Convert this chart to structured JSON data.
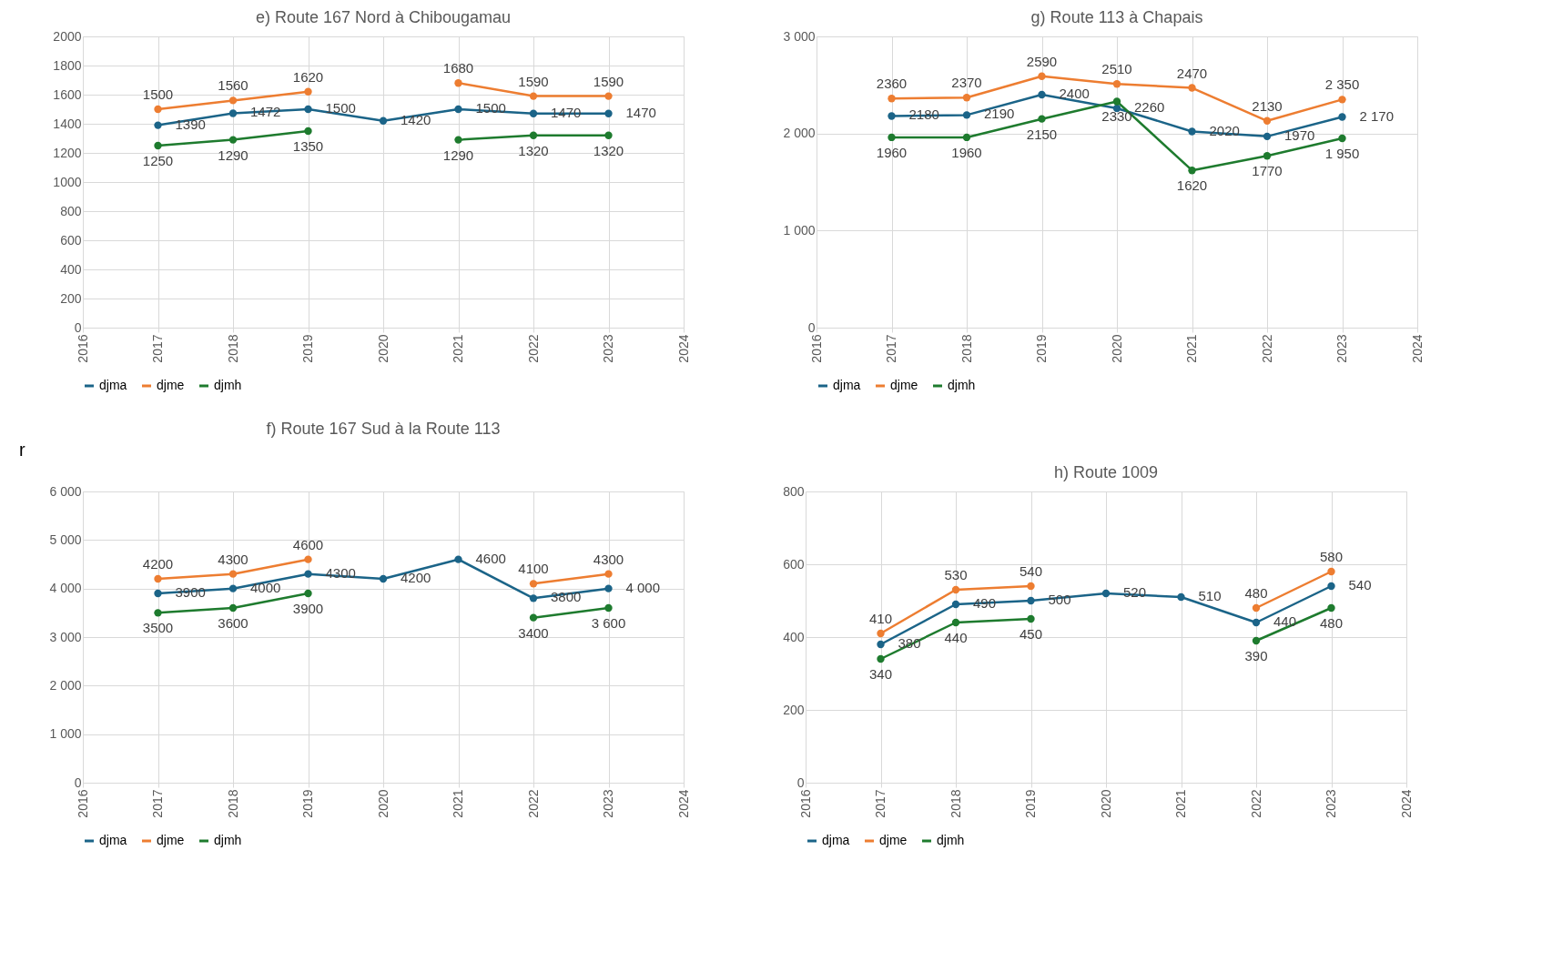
{
  "chart_data": [
    {
      "type": "line",
      "title": "e) Route 167 Nord à Chibougamau",
      "x": [
        2017,
        2018,
        2019,
        2020,
        2021,
        2022,
        2023
      ],
      "xlim": [
        2016,
        2024
      ],
      "xticks": [
        2016,
        2017,
        2018,
        2019,
        2020,
        2021,
        2022,
        2023,
        2024
      ],
      "ylim": [
        0,
        2000
      ],
      "yticks": [
        0,
        200,
        400,
        600,
        800,
        1000,
        1200,
        1400,
        1600,
        1800,
        2000
      ],
      "grid": true,
      "legend": "bottom",
      "marker": "circle",
      "series": [
        {
          "name": "djma",
          "color": "#1b6488",
          "values": [
            1390,
            1472,
            1500,
            1420,
            1500,
            1470,
            1470
          ],
          "value_labels": [
            "1390",
            "1472",
            "1500",
            "1420",
            "1500",
            "1470",
            "1470"
          ]
        },
        {
          "name": "djme",
          "color": "#ed7d31",
          "values": [
            1500,
            1560,
            1620,
            null,
            1680,
            1590,
            1590
          ],
          "value_labels": [
            "1500",
            "1560",
            "1620",
            null,
            "1680",
            "1590",
            "1590"
          ]
        },
        {
          "name": "djmh",
          "color": "#1e7b2e",
          "values": [
            1250,
            1290,
            1350,
            null,
            1290,
            1320,
            1320
          ],
          "value_labels": [
            "1250",
            "1290",
            "1350",
            null,
            "1290",
            "1320",
            "1320"
          ]
        }
      ]
    },
    {
      "type": "line",
      "title": "g) Route 113 à Chapais",
      "x": [
        2017,
        2018,
        2019,
        2020,
        2021,
        2022,
        2023
      ],
      "xlim": [
        2016,
        2024
      ],
      "xticks": [
        2016,
        2017,
        2018,
        2019,
        2020,
        2021,
        2022,
        2023,
        2024
      ],
      "ylim": [
        0,
        3000
      ],
      "yticks": [
        0,
        {
          "value": 1000,
          "label": "1 000"
        },
        {
          "value": 2000,
          "label": "2 000"
        },
        {
          "value": 3000,
          "label": "3 000"
        }
      ],
      "grid": true,
      "legend": "bottom",
      "marker": "circle",
      "series": [
        {
          "name": "djma",
          "color": "#1b6488",
          "values": [
            2180,
            2190,
            2400,
            2260,
            2020,
            1970,
            2170
          ],
          "value_labels": [
            "2180",
            "2190",
            "2400",
            "2260",
            "2020",
            "1970",
            "2 170"
          ]
        },
        {
          "name": "djme",
          "color": "#ed7d31",
          "values": [
            2360,
            2370,
            2590,
            2510,
            2470,
            2130,
            2350
          ],
          "value_labels": [
            "2360",
            "2370",
            "2590",
            "2510",
            "2470",
            "2130",
            "2 350"
          ]
        },
        {
          "name": "djmh",
          "color": "#1e7b2e",
          "values": [
            1960,
            1960,
            2150,
            2330,
            1620,
            1770,
            1950
          ],
          "value_labels": [
            "1960",
            "1960",
            "2150",
            "2330",
            "1620",
            "1770",
            "1 950"
          ]
        }
      ]
    },
    {
      "type": "line",
      "title": "f) Route 167 Sud à la Route 113",
      "annotations": [
        "r"
      ],
      "x": [
        2017,
        2018,
        2019,
        2020,
        2021,
        2022,
        2023
      ],
      "xlim": [
        2016,
        2024
      ],
      "xticks": [
        2016,
        2017,
        2018,
        2019,
        2020,
        2021,
        2022,
        2023,
        2024
      ],
      "ylim": [
        0,
        6000
      ],
      "yticks": [
        0,
        {
          "value": 1000,
          "label": "1 000"
        },
        {
          "value": 2000,
          "label": "2 000"
        },
        {
          "value": 3000,
          "label": "3 000"
        },
        {
          "value": 4000,
          "label": "4 000"
        },
        {
          "value": 5000,
          "label": "5 000"
        },
        {
          "value": 6000,
          "label": "6 000"
        }
      ],
      "grid": true,
      "legend": "bottom",
      "marker": "circle",
      "series": [
        {
          "name": "djma",
          "color": "#1b6488",
          "values": [
            3900,
            4000,
            4300,
            4200,
            4600,
            3800,
            4000
          ],
          "value_labels": [
            "3900",
            "4000",
            "4300",
            "4200",
            "4600",
            "3800",
            "4 000"
          ]
        },
        {
          "name": "djme",
          "color": "#ed7d31",
          "values": [
            4200,
            4300,
            4600,
            null,
            null,
            4100,
            4300
          ],
          "value_labels": [
            "4200",
            "4300",
            "4600",
            null,
            null,
            "4100",
            "4300"
          ]
        },
        {
          "name": "djmh",
          "color": "#1e7b2e",
          "values": [
            3500,
            3600,
            3900,
            null,
            null,
            3400,
            3600
          ],
          "value_labels": [
            "3500",
            "3600",
            "3900",
            null,
            null,
            "3400",
            "3 600"
          ]
        }
      ]
    },
    {
      "type": "line",
      "title": "h) Route 1009",
      "x": [
        2017,
        2018,
        2019,
        2020,
        2021,
        2022,
        2023
      ],
      "xlim": [
        2016,
        2024
      ],
      "xticks": [
        2016,
        2017,
        2018,
        2019,
        2020,
        2021,
        2022,
        2023,
        2024
      ],
      "ylim": [
        0,
        800
      ],
      "yticks": [
        0,
        200,
        400,
        600,
        800
      ],
      "grid": true,
      "legend": "bottom",
      "marker": "circle",
      "series": [
        {
          "name": "djma",
          "color": "#1b6488",
          "values": [
            380,
            490,
            500,
            520,
            510,
            440,
            540
          ],
          "value_labels": [
            "380",
            "490",
            "500",
            "520",
            "510",
            "440",
            "540"
          ]
        },
        {
          "name": "djme",
          "color": "#ed7d31",
          "values": [
            410,
            530,
            540,
            null,
            null,
            480,
            580
          ],
          "value_labels": [
            "410",
            "530",
            "540",
            null,
            null,
            "480",
            "580"
          ]
        },
        {
          "name": "djmh",
          "color": "#1e7b2e",
          "values": [
            340,
            440,
            450,
            null,
            null,
            390,
            480
          ],
          "value_labels": [
            "340",
            "440",
            "450",
            null,
            null,
            "390",
            "480"
          ]
        }
      ]
    }
  ]
}
